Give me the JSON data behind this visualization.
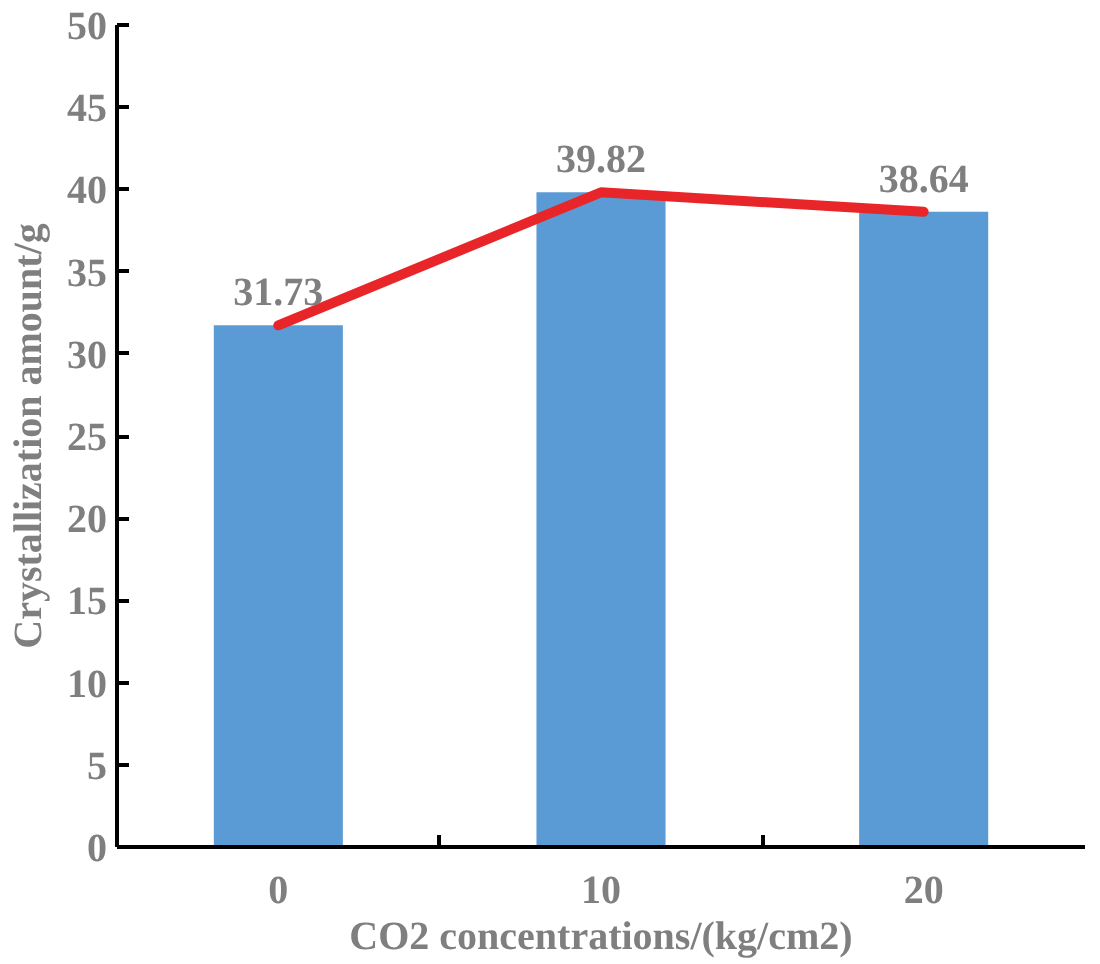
{
  "chart_data": {
    "type": "bar",
    "xlabel": "CO2 concentrations/(kg/cm2)",
    "ylabel": "Crystallization amount/g",
    "categories": [
      "0",
      "10",
      "20"
    ],
    "series": [
      {
        "color": "#5b9bd5",
        "values": [
          31.73,
          39.82,
          38.64
        ],
        "value_labels": [
          "31.73",
          "39.82",
          "38.64"
        ]
      },
      {
        "type": "line",
        "color": "#e8262a",
        "values": [
          31.73,
          39.82,
          38.64
        ]
      }
    ],
    "ylim": [
      0,
      50
    ],
    "yticks": [
      0,
      5,
      10,
      15,
      20,
      25,
      30,
      35,
      40,
      45,
      50
    ],
    "grid": false,
    "line_style": "solid",
    "marker": "none"
  }
}
